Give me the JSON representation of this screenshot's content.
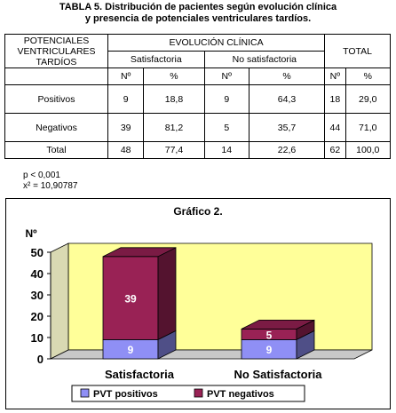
{
  "table_title_line1": "TABLA 5. Distribución de pacientes según evolución clínica",
  "table_title_line2": "y presencia de potenciales ventriculares tardíos.",
  "table": {
    "row_header": [
      "POTENCIALES",
      "VENTRICULARES",
      "TARDÍOS"
    ],
    "group_header": "EVOLUCIÓN CLÍNICA",
    "total_header": "TOTAL",
    "sub_groups": [
      "Satisfactoria",
      "No satisfactoria"
    ],
    "unit_labels": [
      "Nº",
      "%",
      "Nº",
      "%",
      "Nº",
      "%"
    ],
    "rows": [
      {
        "label": "Positivos",
        "cells": [
          "9",
          "18,8",
          "9",
          "64,3",
          "18",
          "29,0"
        ]
      },
      {
        "label": "Negativos",
        "cells": [
          "39",
          "81,2",
          "5",
          "35,7",
          "44",
          "71,0"
        ]
      },
      {
        "label": "Total",
        "cells": [
          "48",
          "77,4",
          "14",
          "22,6",
          "62",
          "100,0"
        ]
      }
    ]
  },
  "stats": {
    "p": "p < 0,001",
    "chi": "x² = 10,90787"
  },
  "chart_data": {
    "type": "bar",
    "stacked": true,
    "title": "Gráfico 2.",
    "ylabel": "Nº",
    "categories": [
      "Satisfactoria",
      "No Satisfactoria"
    ],
    "series": [
      {
        "name": "PVT positivos",
        "values": [
          9,
          9
        ],
        "color": "#8f8ff5"
      },
      {
        "name": "PVT negativos",
        "values": [
          39,
          5
        ],
        "color": "#992255"
      }
    ],
    "ylim": [
      0,
      50
    ],
    "yticks": [
      "0",
      "10",
      "20",
      "30",
      "40",
      "50"
    ],
    "wall_color": "#ffff99",
    "legend_position": "bottom"
  }
}
